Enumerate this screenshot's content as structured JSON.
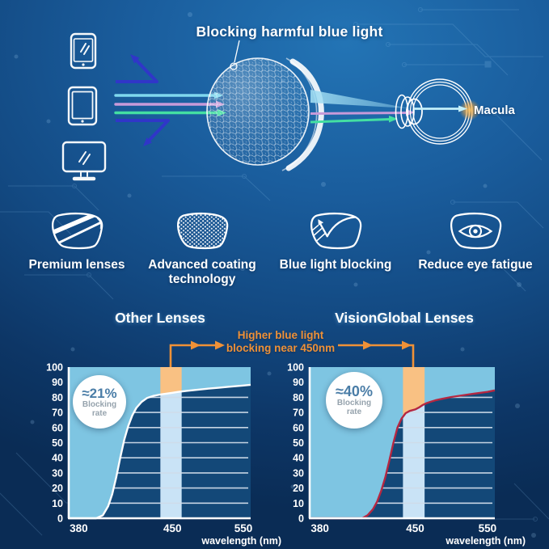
{
  "header": {
    "title": "Blocking harmful blue light",
    "macula_label": "Macula"
  },
  "features": [
    {
      "icon": "premium-lenses-icon",
      "label": "Premium lenses"
    },
    {
      "icon": "advanced-coating-icon",
      "label": "Advanced coating technology"
    },
    {
      "icon": "blue-light-blocking-icon",
      "label": "Blue light blocking"
    },
    {
      "icon": "reduce-eye-fatigue-icon",
      "label": "Reduce eye fatigue"
    }
  ],
  "comparison": {
    "annotation_line1": "Higher blue light",
    "annotation_line2": "blocking near 450nm"
  },
  "colors": {
    "plot_background": "#134878",
    "fill_above_curve": "#7ec5e2",
    "band_below_curve": "#c9e3f6",
    "band_above_curve": "#f9c183",
    "gridline": "#cfdce9",
    "axis": "#ffffff",
    "annotation_orange": "#ef9137",
    "curve_left": "#ffffff",
    "curve_right": "#b52741",
    "ray_cyan": "#7fd8ee",
    "ray_pink": "#c79ad9",
    "ray_green": "#44dfa2",
    "reflection_arrow_blue": "#3036c8",
    "macula_glow": "#ffb034",
    "badge_value_text": "#4a7da7",
    "badge_label_text": "#96a3ad"
  },
  "chart_data": [
    {
      "type": "area",
      "title": "Other Lenses",
      "xlabel": "wavelength (nm)",
      "ylabel": "",
      "x_ticks": [
        380,
        450,
        550
      ],
      "y_ticks": [
        0,
        10,
        20,
        30,
        40,
        50,
        60,
        70,
        80,
        90,
        100
      ],
      "xlim_nm": [
        372,
        563
      ],
      "ylim": [
        0,
        100
      ],
      "grid": true,
      "highlight_band_nm": [
        441,
        463
      ],
      "curve_color": "#ffffff",
      "badge": {
        "value": "≈21%",
        "line1": "Blocking",
        "line2": "rate"
      },
      "series": [
        {
          "name": "Blocking rate (%)",
          "points": [
            [
              372,
              0
            ],
            [
              393,
              0
            ],
            [
              398,
              2
            ],
            [
              402,
              8
            ],
            [
              405,
              16
            ],
            [
              408,
              27
            ],
            [
              411,
              40
            ],
            [
              414,
              52
            ],
            [
              417,
              61
            ],
            [
              420,
              68
            ],
            [
              423,
              73
            ],
            [
              427,
              77
            ],
            [
              431,
              79.5
            ],
            [
              436,
              81
            ],
            [
              442,
              82
            ],
            [
              450,
              83
            ],
            [
              458,
              83.6
            ],
            [
              470,
              84.3
            ],
            [
              485,
              85
            ],
            [
              500,
              85.7
            ],
            [
              515,
              86.3
            ],
            [
              530,
              87
            ],
            [
              550,
              87.8
            ],
            [
              563,
              88.3
            ]
          ]
        }
      ]
    },
    {
      "type": "area",
      "title": "VisionGlobal Lenses",
      "xlabel": "wavelength (nm)",
      "ylabel": "",
      "x_ticks": [
        380,
        450,
        550
      ],
      "y_ticks": [
        0,
        10,
        20,
        30,
        40,
        50,
        60,
        70,
        80,
        90,
        100
      ],
      "xlim_nm": [
        372,
        563
      ],
      "ylim": [
        0,
        100
      ],
      "grid": true,
      "highlight_band_nm": [
        441,
        463
      ],
      "curve_color": "#b52741",
      "badge": {
        "value": "≈40%",
        "line1": "Blocking",
        "line2": "rate"
      },
      "series": [
        {
          "name": "Blocking rate (%)",
          "points": [
            [
              372,
              0
            ],
            [
              411,
              0
            ],
            [
              415,
              2
            ],
            [
              419,
              6
            ],
            [
              422,
              11
            ],
            [
              425,
              18
            ],
            [
              428,
              27
            ],
            [
              431,
              38
            ],
            [
              434,
              50
            ],
            [
              437,
              60
            ],
            [
              440,
              66
            ],
            [
              443,
              69.5
            ],
            [
              446,
              71
            ],
            [
              450,
              72
            ],
            [
              455,
              73.2
            ],
            [
              460,
              74.8
            ],
            [
              465,
              76
            ],
            [
              471,
              77
            ],
            [
              478,
              78
            ],
            [
              487,
              79
            ],
            [
              500,
              80.2
            ],
            [
              515,
              81.3
            ],
            [
              530,
              82.3
            ],
            [
              550,
              83.6
            ],
            [
              563,
              84.6
            ]
          ]
        }
      ]
    }
  ]
}
